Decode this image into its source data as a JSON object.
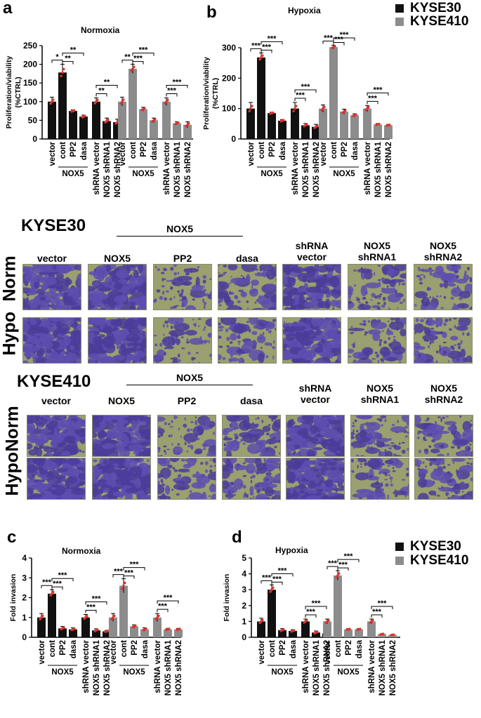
{
  "legend": {
    "top": [
      {
        "label": "KYSE30",
        "color": "#111111"
      },
      {
        "label": "KYSE410",
        "color": "#8c8c8c"
      }
    ],
    "bottom": [
      {
        "label": "KYSE30",
        "color": "#111111"
      },
      {
        "label": "KYSE410",
        "color": "#8c8c8c"
      }
    ]
  },
  "panels": {
    "a": "a",
    "b": "b",
    "c": "c",
    "d": "d"
  },
  "invasion": {
    "kyse30": {
      "title": "KYSE30",
      "group_label": "NOX5",
      "columns": [
        "vector",
        "NOX5",
        "PP2",
        "dasa",
        "shRNA\nvector",
        "NOX5\nshRNA1",
        "NOX5\nshRNA2"
      ],
      "rows": [
        "Norm",
        "Hypo"
      ]
    },
    "kyse410": {
      "title": "KYSE410",
      "group_label": "NOX5",
      "columns": [
        "vector",
        "NOX5",
        "PP2",
        "dasa",
        "shRNA\nvector",
        "NOX5\nshRNA1",
        "NOX5\nshRNA2"
      ],
      "rows": [
        "Norm",
        "Hypo"
      ]
    }
  },
  "chart_data": [
    {
      "type": "bar",
      "panel": "a",
      "title": "Normoxia",
      "ylabel": "Proliferation/viability\n(%CTRL)",
      "ylim": [
        0,
        250
      ],
      "yticks": [
        0,
        50,
        100,
        150,
        200,
        250
      ],
      "categories": [
        "vector",
        "cont",
        "PP2",
        "dasa",
        "shRNA vector",
        "NOX5 shRNA1",
        "NOX5 shRNA2"
      ],
      "group_label": "NOX5",
      "series": [
        {
          "name": "KYSE30",
          "values": [
            100,
            178,
            75,
            60,
            100,
            48,
            45
          ],
          "errors": [
            12,
            22,
            3,
            4,
            10,
            8,
            8
          ]
        },
        {
          "name": "KYSE410",
          "values": [
            100,
            188,
            80,
            50,
            100,
            42,
            38
          ],
          "errors": [
            12,
            12,
            5,
            6,
            10,
            4,
            8
          ]
        }
      ],
      "significance": {
        "KYSE30": [
          "*",
          "**",
          "**",
          "**",
          "**"
        ],
        "KYSE410": [
          "**",
          "***",
          "***",
          "***",
          "***"
        ]
      }
    },
    {
      "type": "bar",
      "panel": "b",
      "title": "Hypoxia",
      "ylabel": "Proliferation/viability\n(%CTRL)",
      "ylim": [
        0,
        300
      ],
      "yticks": [
        0,
        100,
        200,
        300
      ],
      "categories": [
        "vector",
        "cont",
        "PP2",
        "dasa",
        "shRNA vector",
        "NOX5 shRNA1",
        "NOX5 shRNA2"
      ],
      "group_label": "NOX5",
      "series": [
        {
          "name": "KYSE30",
          "values": [
            100,
            268,
            85,
            60,
            100,
            45,
            40
          ],
          "errors": [
            20,
            15,
            3,
            4,
            20,
            6,
            8
          ]
        },
        {
          "name": "KYSE410",
          "values": [
            100,
            302,
            90,
            78,
            100,
            48,
            45
          ],
          "errors": [
            12,
            6,
            8,
            5,
            10,
            3,
            3
          ]
        }
      ],
      "significance": {
        "KYSE30": [
          "***",
          "***",
          "***",
          "***",
          "***"
        ],
        "KYSE410": [
          "***",
          "***",
          "***",
          "***",
          "***"
        ]
      }
    },
    {
      "type": "bar",
      "panel": "c",
      "title": "Normoxia",
      "ylabel": "Fold invasion",
      "ylim": [
        0,
        4
      ],
      "yticks": [
        0,
        1,
        2,
        3,
        4
      ],
      "categories": [
        "vector",
        "cont",
        "PP2",
        "dasa",
        "shRNA vector",
        "NOX5 shRNA1",
        "NOX5 shRNA2"
      ],
      "group_label": "NOX5",
      "series": [
        {
          "name": "KYSE30",
          "values": [
            1.0,
            2.2,
            0.45,
            0.4,
            1.0,
            0.35,
            0.3
          ],
          "errors": [
            0.2,
            0.2,
            0.1,
            0.08,
            0.15,
            0.08,
            0.05
          ]
        },
        {
          "name": "KYSE410",
          "values": [
            1.0,
            2.6,
            0.55,
            0.4,
            1.0,
            0.4,
            0.4
          ],
          "errors": [
            0.2,
            0.35,
            0.08,
            0.08,
            0.2,
            0.05,
            0.05
          ]
        }
      ],
      "significance": {
        "KYSE30": [
          "***",
          "***",
          "***",
          "***",
          "***"
        ],
        "KYSE410": [
          "***",
          "***",
          "***",
          "***",
          "***"
        ]
      }
    },
    {
      "type": "bar",
      "panel": "d",
      "title": "Hypoxia",
      "ylabel": "Fold invasion",
      "ylim": [
        0,
        5
      ],
      "yticks": [
        0,
        1,
        2,
        3,
        4,
        5
      ],
      "categories": [
        "vector",
        "cont",
        "PP2",
        "dasa",
        "shRNA vector",
        "NOX5 shRNA1",
        "NOX5 shRNA2"
      ],
      "group_label": "NOX5",
      "series": [
        {
          "name": "KYSE30",
          "values": [
            1.0,
            3.0,
            0.45,
            0.4,
            1.0,
            0.3,
            0.25
          ],
          "errors": [
            0.2,
            0.3,
            0.1,
            0.08,
            0.15,
            0.1,
            0.08
          ]
        },
        {
          "name": "KYSE410",
          "values": [
            1.0,
            3.9,
            0.5,
            0.5,
            1.0,
            0.2,
            0.15
          ],
          "errors": [
            0.15,
            0.3,
            0.05,
            0.05,
            0.15,
            0.03,
            0.03
          ]
        }
      ],
      "significance": {
        "KYSE30": [
          "***",
          "***",
          "***",
          "***",
          "***"
        ],
        "KYSE410": [
          "***",
          "***",
          "***",
          "***",
          "***"
        ]
      }
    }
  ]
}
